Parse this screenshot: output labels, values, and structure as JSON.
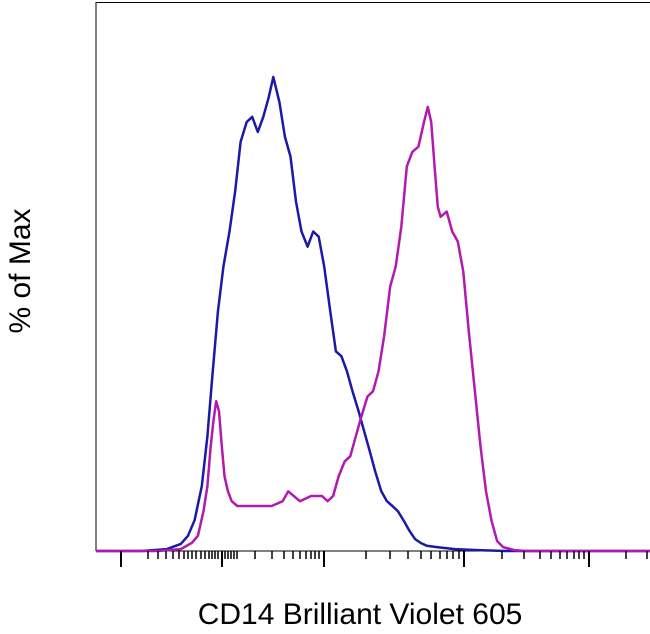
{
  "chart_data": {
    "type": "line",
    "title": "",
    "xlabel": "CD14 Brilliant Violet 605",
    "ylabel": "% of Max",
    "xscale": "log",
    "xlim": [
      0,
      1
    ],
    "ylim": [
      0,
      100
    ],
    "grid": false,
    "legend": "none",
    "series": [
      {
        "color": "#1a1aa6",
        "points": [
          [
            0.0,
            0.0
          ],
          [
            0.082,
            0.0
          ],
          [
            0.128,
            0.4
          ],
          [
            0.153,
            1.5
          ],
          [
            0.166,
            3.2
          ],
          [
            0.178,
            6.5
          ],
          [
            0.191,
            13.7
          ],
          [
            0.201,
            24.2
          ],
          [
            0.21,
            36.8
          ],
          [
            0.22,
            50.5
          ],
          [
            0.23,
            60.0
          ],
          [
            0.241,
            67.4
          ],
          [
            0.251,
            75.8
          ],
          [
            0.261,
            86.3
          ],
          [
            0.272,
            90.5
          ],
          [
            0.282,
            91.6
          ],
          [
            0.292,
            88.4
          ],
          [
            0.302,
            91.6
          ],
          [
            0.312,
            95.8
          ],
          [
            0.32,
            100.0
          ],
          [
            0.331,
            94.7
          ],
          [
            0.341,
            87.4
          ],
          [
            0.351,
            83.2
          ],
          [
            0.361,
            73.7
          ],
          [
            0.371,
            67.4
          ],
          [
            0.382,
            64.2
          ],
          [
            0.392,
            67.4
          ],
          [
            0.402,
            66.3
          ],
          [
            0.412,
            60.0
          ],
          [
            0.423,
            50.5
          ],
          [
            0.433,
            42.1
          ],
          [
            0.443,
            41.1
          ],
          [
            0.453,
            37.9
          ],
          [
            0.463,
            33.7
          ],
          [
            0.474,
            29.5
          ],
          [
            0.484,
            25.3
          ],
          [
            0.494,
            21.1
          ],
          [
            0.504,
            16.8
          ],
          [
            0.515,
            12.6
          ],
          [
            0.525,
            10.5
          ],
          [
            0.535,
            9.5
          ],
          [
            0.545,
            8.4
          ],
          [
            0.556,
            6.3
          ],
          [
            0.566,
            4.2
          ],
          [
            0.576,
            2.5
          ],
          [
            0.586,
            1.7
          ],
          [
            0.597,
            1.1
          ],
          [
            0.617,
            0.8
          ],
          [
            0.648,
            0.4
          ],
          [
            0.689,
            0.2
          ],
          [
            0.74,
            0.0
          ],
          [
            1.0,
            0.0
          ]
        ]
      },
      {
        "color": "#b01ab0",
        "points": [
          [
            0.0,
            0.0
          ],
          [
            0.112,
            0.0
          ],
          [
            0.153,
            0.4
          ],
          [
            0.173,
            1.7
          ],
          [
            0.184,
            3.2
          ],
          [
            0.194,
            8.4
          ],
          [
            0.201,
            13.7
          ],
          [
            0.207,
            22.1
          ],
          [
            0.212,
            27.4
          ],
          [
            0.217,
            31.6
          ],
          [
            0.222,
            29.5
          ],
          [
            0.227,
            22.1
          ],
          [
            0.232,
            15.8
          ],
          [
            0.238,
            12.6
          ],
          [
            0.245,
            10.5
          ],
          [
            0.255,
            9.5
          ],
          [
            0.286,
            9.5
          ],
          [
            0.317,
            9.5
          ],
          [
            0.337,
            10.5
          ],
          [
            0.347,
            12.6
          ],
          [
            0.357,
            11.6
          ],
          [
            0.368,
            10.5
          ],
          [
            0.388,
            11.6
          ],
          [
            0.408,
            11.6
          ],
          [
            0.418,
            10.5
          ],
          [
            0.428,
            11.6
          ],
          [
            0.438,
            15.8
          ],
          [
            0.449,
            18.9
          ],
          [
            0.459,
            20.0
          ],
          [
            0.469,
            24.2
          ],
          [
            0.479,
            28.4
          ],
          [
            0.49,
            32.6
          ],
          [
            0.5,
            33.7
          ],
          [
            0.51,
            37.9
          ],
          [
            0.52,
            45.3
          ],
          [
            0.531,
            55.8
          ],
          [
            0.541,
            60.0
          ],
          [
            0.551,
            68.4
          ],
          [
            0.561,
            81.1
          ],
          [
            0.571,
            84.2
          ],
          [
            0.582,
            85.3
          ],
          [
            0.592,
            90.5
          ],
          [
            0.599,
            93.7
          ],
          [
            0.605,
            90.5
          ],
          [
            0.612,
            80.0
          ],
          [
            0.617,
            72.6
          ],
          [
            0.622,
            70.5
          ],
          [
            0.633,
            71.6
          ],
          [
            0.643,
            67.4
          ],
          [
            0.653,
            65.3
          ],
          [
            0.663,
            58.9
          ],
          [
            0.673,
            46.3
          ],
          [
            0.684,
            33.7
          ],
          [
            0.694,
            22.1
          ],
          [
            0.704,
            12.6
          ],
          [
            0.714,
            6.3
          ],
          [
            0.724,
            2.1
          ],
          [
            0.735,
            0.8
          ],
          [
            0.755,
            0.2
          ],
          [
            0.776,
            0.0
          ],
          [
            1.0,
            0.0
          ]
        ]
      }
    ]
  }
}
